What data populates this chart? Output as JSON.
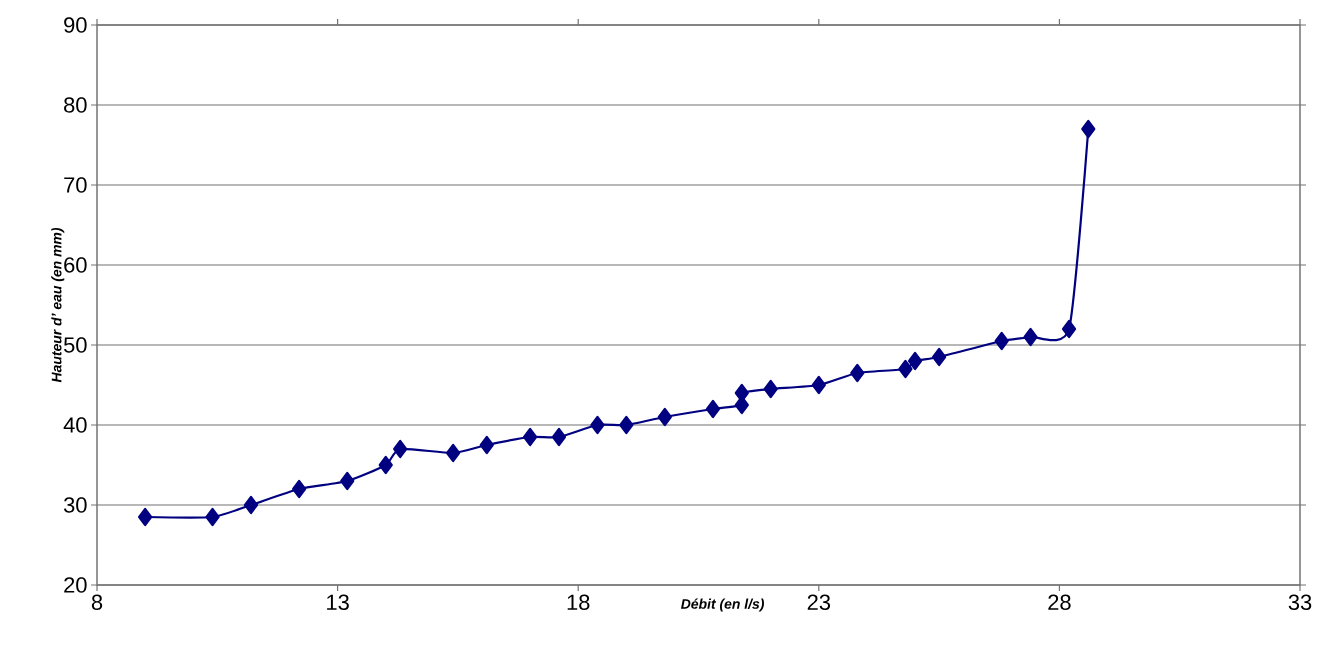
{
  "chart_data": {
    "type": "line",
    "xlabel": "Débit (en l/s)",
    "ylabel": "Hauteur d’ eau (en mm)",
    "x": [
      9.0,
      10.4,
      11.2,
      12.2,
      13.2,
      14.0,
      14.3,
      15.4,
      16.1,
      17.0,
      17.6,
      18.4,
      19.0,
      19.8,
      20.8,
      21.4,
      21.4,
      22.0,
      23.0,
      23.8,
      24.8,
      25.0,
      25.5,
      26.8,
      27.4,
      28.2,
      28.6
    ],
    "series": [
      {
        "color": "#000080",
        "values": [
          28.5,
          28.5,
          30,
          32,
          33,
          35,
          37,
          36.5,
          37.5,
          38.5,
          38.5,
          40,
          40,
          41,
          42,
          42.5,
          44,
          44.5,
          45,
          46.5,
          47,
          48,
          48.5,
          50.5,
          51,
          52,
          77
        ]
      }
    ],
    "xlim": [
      8,
      33
    ],
    "xticks": [
      8,
      13,
      18,
      23,
      28,
      33
    ],
    "ylim": [
      20,
      90
    ],
    "yticks": [
      20,
      30,
      40,
      50,
      60,
      70,
      80,
      90
    ],
    "grid": "y",
    "marker": "diamond",
    "line_style": "solid"
  }
}
